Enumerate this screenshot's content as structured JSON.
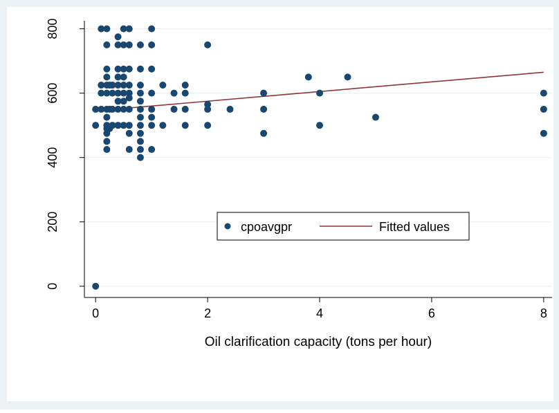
{
  "chart_data": {
    "type": "scatter",
    "title": "",
    "xlabel": "Oil clarification capacity (tons per hour)",
    "ylabel": "",
    "xlim": [
      -0.2,
      8.15
    ],
    "ylim": [
      -35,
      825
    ],
    "x_ticks": [
      "0",
      "2",
      "4",
      "6",
      "8"
    ],
    "y_ticks": [
      "0",
      "200",
      "400",
      "600",
      "800"
    ],
    "grid": "horizontal",
    "legend_placement": "center",
    "colors": {
      "plot_background": "#ffffff",
      "outer_background": "#eaf2f3",
      "marker": "#1a476f",
      "fit_line": "#90353b",
      "grid": "#eaf2f3"
    },
    "series": [
      {
        "name": "cpoavgpr",
        "kind": "scatter",
        "points": [
          [
            0,
            0
          ],
          [
            0,
            500
          ],
          [
            0,
            550
          ],
          [
            0.1,
            550
          ],
          [
            0.1,
            600
          ],
          [
            0.1,
            625
          ],
          [
            0.1,
            800
          ],
          [
            0.2,
            425
          ],
          [
            0.2,
            450
          ],
          [
            0.2,
            475
          ],
          [
            0.2,
            490
          ],
          [
            0.2,
            500
          ],
          [
            0.2,
            525
          ],
          [
            0.2,
            550
          ],
          [
            0.2,
            600
          ],
          [
            0.2,
            625
          ],
          [
            0.2,
            650
          ],
          [
            0.2,
            675
          ],
          [
            0.2,
            750
          ],
          [
            0.2,
            800
          ],
          [
            0.25,
            490
          ],
          [
            0.25,
            550
          ],
          [
            0.25,
            625
          ],
          [
            0.3,
            500
          ],
          [
            0.3,
            550
          ],
          [
            0.3,
            600
          ],
          [
            0.3,
            625
          ],
          [
            0.4,
            500
          ],
          [
            0.4,
            550
          ],
          [
            0.4,
            575
          ],
          [
            0.4,
            600
          ],
          [
            0.4,
            625
          ],
          [
            0.4,
            650
          ],
          [
            0.4,
            675
          ],
          [
            0.4,
            750
          ],
          [
            0.4,
            775
          ],
          [
            0.5,
            500
          ],
          [
            0.5,
            550
          ],
          [
            0.5,
            575
          ],
          [
            0.5,
            600
          ],
          [
            0.5,
            625
          ],
          [
            0.5,
            650
          ],
          [
            0.5,
            675
          ],
          [
            0.5,
            750
          ],
          [
            0.5,
            800
          ],
          [
            0.6,
            425
          ],
          [
            0.6,
            475
          ],
          [
            0.6,
            500
          ],
          [
            0.6,
            550
          ],
          [
            0.6,
            585
          ],
          [
            0.6,
            600
          ],
          [
            0.6,
            625
          ],
          [
            0.6,
            675
          ],
          [
            0.6,
            750
          ],
          [
            0.6,
            800
          ],
          [
            0.8,
            400
          ],
          [
            0.8,
            425
          ],
          [
            0.8,
            450
          ],
          [
            0.8,
            475
          ],
          [
            0.8,
            500
          ],
          [
            0.8,
            525
          ],
          [
            0.8,
            550
          ],
          [
            0.8,
            575
          ],
          [
            0.8,
            600
          ],
          [
            0.8,
            625
          ],
          [
            0.8,
            675
          ],
          [
            0.8,
            750
          ],
          [
            1,
            425
          ],
          [
            1,
            500
          ],
          [
            1,
            525
          ],
          [
            1,
            550
          ],
          [
            1,
            600
          ],
          [
            1,
            675
          ],
          [
            1,
            750
          ],
          [
            1,
            800
          ],
          [
            1.2,
            500
          ],
          [
            1.2,
            625
          ],
          [
            1.4,
            550
          ],
          [
            1.4,
            600
          ],
          [
            1.6,
            500
          ],
          [
            1.6,
            550
          ],
          [
            1.6,
            600
          ],
          [
            1.6,
            625
          ],
          [
            2,
            500
          ],
          [
            2,
            550
          ],
          [
            2,
            565
          ],
          [
            2,
            750
          ],
          [
            2.4,
            550
          ],
          [
            3,
            475
          ],
          [
            3,
            550
          ],
          [
            3,
            600
          ],
          [
            3.8,
            650
          ],
          [
            4,
            500
          ],
          [
            4,
            600
          ],
          [
            4.5,
            650
          ],
          [
            5,
            525
          ],
          [
            8,
            475
          ],
          [
            8,
            550
          ],
          [
            8,
            600
          ]
        ]
      },
      {
        "name": "Fitted values",
        "kind": "line",
        "points": [
          [
            0,
            545
          ],
          [
            8,
            665
          ]
        ]
      }
    ]
  }
}
